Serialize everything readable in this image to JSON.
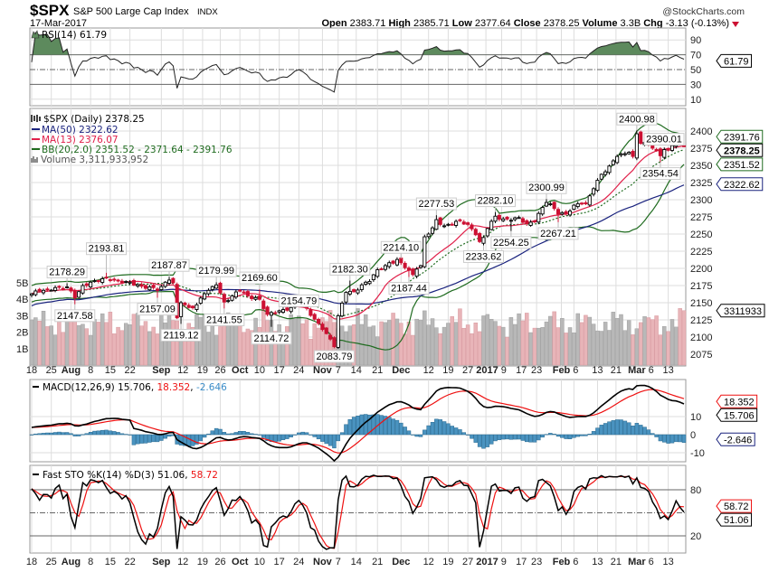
{
  "header": {
    "symbol": "$SPX",
    "name": "S&P 500 Large Cap Index",
    "exchange": "INDX",
    "date": "17-Mar-2017",
    "brand": "@StockCharts.com",
    "quote": [
      {
        "label": "Open",
        "value": "2383.71"
      },
      {
        "label": "High",
        "value": "2385.71"
      },
      {
        "label": "Low",
        "value": "2377.64"
      },
      {
        "label": "Close",
        "value": "2378.25"
      },
      {
        "label": "Volume",
        "value": "3.3B"
      },
      {
        "label": "Chg",
        "value": "-3.13 (-0.13%)"
      }
    ],
    "change_direction": "down"
  },
  "legends": {
    "rsi": "RSI(14) 61.79",
    "price": "$SPX (Daily) 2378.25",
    "ma50": "MA(50) 2322.62",
    "ma13": "MA(13) 2376.07",
    "bb": "BB(20,2.0) 2351.52 - 2371.64 - 2391.76",
    "volume": "Volume 3,311,933,952",
    "macd_name": "MACD(12,26,9) 15.706, ",
    "macd_signal": "18.352",
    "macd_sep": ", ",
    "macd_hist": "-2.646",
    "sto_name": "Fast STO %K(14) %D(3) 51.06, ",
    "sto_d": "58.72"
  },
  "colors": {
    "up_candle": "#000000",
    "down_candle": "#cc1133",
    "ma50": "#1a237e",
    "ma13": "#e0204a",
    "bb": "#1f6b1f",
    "volume_up": "#b8b8b8",
    "volume_down": "#e8b4b8",
    "macd": "#000000",
    "signal": "#ee1111",
    "histogram": "#4a93c0",
    "rsi_fill": "#5d8a5d"
  },
  "chart_data": {
    "type": "candlestick",
    "title": "$SPX S&P 500 Large Cap Index (Daily)",
    "num_days": 167,
    "close_anchors": [
      [
        0,
        2163
      ],
      [
        2,
        2167
      ],
      [
        4,
        2169
      ],
      [
        6,
        2172
      ],
      [
        8,
        2170
      ],
      [
        9,
        2173
      ],
      [
        11,
        2157
      ],
      [
        13,
        2175
      ],
      [
        16,
        2182
      ],
      [
        19,
        2186
      ],
      [
        22,
        2182
      ],
      [
        25,
        2180
      ],
      [
        28,
        2174
      ],
      [
        31,
        2172
      ],
      [
        32,
        2168
      ],
      [
        35,
        2183
      ],
      [
        36,
        2179
      ],
      [
        37,
        2128
      ],
      [
        38,
        2150
      ],
      [
        40,
        2143
      ],
      [
        42,
        2147
      ],
      [
        44,
        2163
      ],
      [
        47,
        2176
      ],
      [
        49,
        2151
      ],
      [
        51,
        2160
      ],
      [
        53,
        2168
      ],
      [
        55,
        2160
      ],
      [
        58,
        2155
      ],
      [
        60,
        2133
      ],
      [
        62,
        2135
      ],
      [
        64,
        2140
      ],
      [
        66,
        2143
      ],
      [
        68,
        2151
      ],
      [
        70,
        2142
      ],
      [
        72,
        2126
      ],
      [
        74,
        2111
      ],
      [
        76,
        2097
      ],
      [
        77,
        2086
      ],
      [
        78,
        2131
      ],
      [
        80,
        2165
      ],
      [
        82,
        2166
      ],
      [
        84,
        2176
      ],
      [
        86,
        2181
      ],
      [
        88,
        2198
      ],
      [
        90,
        2204
      ],
      [
        93,
        2213
      ],
      [
        95,
        2201
      ],
      [
        97,
        2191
      ],
      [
        98,
        2199
      ],
      [
        99,
        2204
      ],
      [
        100,
        2246
      ],
      [
        102,
        2259
      ],
      [
        103,
        2271
      ],
      [
        105,
        2262
      ],
      [
        107,
        2264
      ],
      [
        109,
        2270
      ],
      [
        111,
        2264
      ],
      [
        113,
        2249
      ],
      [
        114,
        2239
      ],
      [
        115,
        2245
      ],
      [
        116,
        2258
      ],
      [
        118,
        2276
      ],
      [
        120,
        2272
      ],
      [
        122,
        2270
      ],
      [
        124,
        2274
      ],
      [
        126,
        2265
      ],
      [
        128,
        2268
      ],
      [
        129,
        2280
      ],
      [
        131,
        2296
      ],
      [
        132,
        2294
      ],
      [
        134,
        2279
      ],
      [
        136,
        2280
      ],
      [
        138,
        2292
      ],
      [
        140,
        2295
      ],
      [
        141,
        2294
      ],
      [
        143,
        2316
      ],
      [
        145,
        2337
      ],
      [
        147,
        2349
      ],
      [
        149,
        2363
      ],
      [
        151,
        2367
      ],
      [
        152,
        2369
      ],
      [
        153,
        2363
      ],
      [
        154,
        2396
      ],
      [
        155,
        2382
      ],
      [
        157,
        2381
      ],
      [
        158,
        2375
      ],
      [
        160,
        2364
      ],
      [
        161,
        2373
      ],
      [
        162,
        2372
      ],
      [
        164,
        2385
      ],
      [
        165,
        2381
      ],
      [
        166,
        2378.25
      ]
    ],
    "annotations": [
      {
        "day": 9,
        "value": "2178.29",
        "kind": "high"
      },
      {
        "day": 11,
        "value": "2147.58",
        "kind": "low"
      },
      {
        "day": 19,
        "value": "2193.81",
        "kind": "high"
      },
      {
        "day": 32,
        "value": "2157.09",
        "kind": "low"
      },
      {
        "day": 35,
        "value": "2187.87",
        "kind": "high"
      },
      {
        "day": 38,
        "value": "2119.12",
        "kind": "low"
      },
      {
        "day": 47,
        "value": "2179.99",
        "kind": "high"
      },
      {
        "day": 49,
        "value": "2141.55",
        "kind": "low"
      },
      {
        "day": 58,
        "value": "2169.60",
        "kind": "high"
      },
      {
        "day": 61,
        "value": "2114.72",
        "kind": "low"
      },
      {
        "day": 68,
        "value": "2154.79",
        "kind": "high"
      },
      {
        "day": 77,
        "value": "2083.79",
        "kind": "low"
      },
      {
        "day": 81,
        "value": "2182.30",
        "kind": "high"
      },
      {
        "day": 94,
        "value": "2214.10",
        "kind": "high"
      },
      {
        "day": 96,
        "value": "2187.44",
        "kind": "low"
      },
      {
        "day": 103,
        "value": "2277.53",
        "kind": "high"
      },
      {
        "day": 115,
        "value": "2233.62",
        "kind": "low"
      },
      {
        "day": 118,
        "value": "2282.10",
        "kind": "high"
      },
      {
        "day": 122,
        "value": "2254.25",
        "kind": "low"
      },
      {
        "day": 131,
        "value": "2300.99",
        "kind": "high"
      },
      {
        "day": 134,
        "value": "2267.21",
        "kind": "low"
      },
      {
        "day": 154,
        "value": "2400.98",
        "kind": "high"
      },
      {
        "day": 160,
        "value": "2354.54",
        "kind": "low"
      },
      {
        "day": 164,
        "value": "2390.01",
        "kind": "high"
      }
    ],
    "volume_last_billions": 3.31,
    "x_ticks": [
      {
        "day": 0,
        "label": "18"
      },
      {
        "day": 5,
        "label": "25"
      },
      {
        "day": 10,
        "label": "Aug",
        "bold": true
      },
      {
        "day": 15,
        "label": "8"
      },
      {
        "day": 20,
        "label": "15"
      },
      {
        "day": 25,
        "label": "22"
      },
      {
        "day": 33,
        "label": "Sep",
        "bold": true
      },
      {
        "day": 38.5,
        "label": "12"
      },
      {
        "day": 43.5,
        "label": "19"
      },
      {
        "day": 48,
        "label": "26"
      },
      {
        "day": 53,
        "label": "Oct",
        "bold": true
      },
      {
        "day": 58,
        "label": "10"
      },
      {
        "day": 63,
        "label": "17"
      },
      {
        "day": 68,
        "label": "24"
      },
      {
        "day": 74,
        "label": "Nov",
        "bold": true
      },
      {
        "day": 78,
        "label": "7"
      },
      {
        "day": 82.6,
        "label": "14"
      },
      {
        "day": 88,
        "label": "21"
      },
      {
        "day": 94,
        "label": "Dec",
        "bold": true
      },
      {
        "day": 101,
        "label": "12"
      },
      {
        "day": 106,
        "label": "19"
      },
      {
        "day": 111,
        "label": "27"
      },
      {
        "day": 115.6,
        "label": "2017",
        "bold": true
      },
      {
        "day": 119.6,
        "label": "9"
      },
      {
        "day": 124.6,
        "label": "17"
      },
      {
        "day": 128.5,
        "label": "23"
      },
      {
        "day": 134.8,
        "label": "Feb",
        "bold": true
      },
      {
        "day": 138,
        "label": "6"
      },
      {
        "day": 144,
        "label": "13"
      },
      {
        "day": 148.7,
        "label": "21"
      },
      {
        "day": 154,
        "label": "Mar",
        "bold": true
      },
      {
        "day": 157,
        "label": "6"
      },
      {
        "day": 162,
        "label": "13"
      }
    ],
    "price_ticks": [
      "2400",
      "2375",
      "2350",
      "2325",
      "2300",
      "2275",
      "2250",
      "2225",
      "2200",
      "2175",
      "2150",
      "2125",
      "2100",
      "2075"
    ],
    "volume_ticks": [
      "5B",
      "4B",
      "3B",
      "2B",
      "1B"
    ],
    "rsi_ticks": [
      "90",
      "70",
      "50",
      "30",
      "10"
    ],
    "macd_ticks": [
      "10",
      "0",
      "-10"
    ],
    "sto_ticks": [
      "80",
      "20"
    ],
    "ylim_price": [
      2060,
      2430
    ],
    "ylim_rsi": [
      0,
      100
    ],
    "ylim_sto": [
      0,
      100
    ],
    "value_tags": {
      "rsi": "61.79",
      "bb_upper": "2391.76",
      "close": "2378.25",
      "bb_lower": "2351.52",
      "ma50": "2322.62",
      "volume": "3311933",
      "macd_signal": "18.352",
      "macd": "15.706",
      "macd_hist": "-2.646",
      "sto_d": "58.72",
      "sto_k": "51.06"
    }
  }
}
